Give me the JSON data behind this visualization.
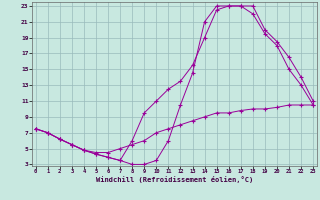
{
  "bg_color": "#c8e8e0",
  "line_color": "#990099",
  "grid_color": "#99bbbb",
  "xlabel": "Windchill (Refroidissement éolien,°C)",
  "xlim": [
    0,
    23
  ],
  "ylim": [
    3,
    23
  ],
  "yticks": [
    3,
    5,
    7,
    9,
    11,
    13,
    15,
    17,
    19,
    21,
    23
  ],
  "xticks": [
    0,
    1,
    2,
    3,
    4,
    5,
    6,
    7,
    8,
    9,
    10,
    11,
    12,
    13,
    14,
    15,
    16,
    17,
    18,
    19,
    20,
    21,
    22,
    23
  ],
  "line1_x": [
    0,
    1,
    2,
    3,
    4,
    5,
    6,
    7,
    8,
    9,
    10,
    11,
    12,
    13,
    14,
    15,
    16,
    17,
    18,
    19,
    20,
    21,
    22,
    23
  ],
  "line1_y": [
    7.5,
    7.0,
    6.2,
    5.5,
    4.8,
    4.3,
    3.9,
    3.5,
    3.0,
    3.0,
    3.5,
    6.0,
    10.5,
    14.5,
    21.0,
    23.0,
    23.0,
    23.0,
    22.0,
    19.5,
    18.0,
    15.0,
    13.0,
    10.5
  ],
  "line2_x": [
    0,
    1,
    2,
    3,
    4,
    5,
    6,
    7,
    8,
    9,
    10,
    11,
    12,
    13,
    14,
    15,
    16,
    17,
    18,
    19,
    20,
    21,
    22,
    23
  ],
  "line2_y": [
    7.5,
    7.0,
    6.2,
    5.5,
    4.8,
    4.3,
    3.9,
    3.5,
    6.0,
    9.5,
    11.0,
    12.5,
    13.5,
    15.5,
    19.0,
    22.5,
    23.0,
    23.0,
    23.0,
    20.0,
    18.5,
    16.5,
    14.0,
    11.0
  ],
  "line3_x": [
    0,
    1,
    2,
    3,
    4,
    5,
    6,
    7,
    8,
    9,
    10,
    11,
    12,
    13,
    14,
    15,
    16,
    17,
    18,
    19,
    20,
    21,
    22,
    23
  ],
  "line3_y": [
    7.5,
    7.0,
    6.2,
    5.5,
    4.8,
    4.5,
    4.5,
    5.0,
    5.5,
    6.0,
    7.0,
    7.5,
    8.0,
    8.5,
    9.0,
    9.5,
    9.5,
    9.8,
    10.0,
    10.0,
    10.2,
    10.5,
    10.5,
    10.5
  ]
}
